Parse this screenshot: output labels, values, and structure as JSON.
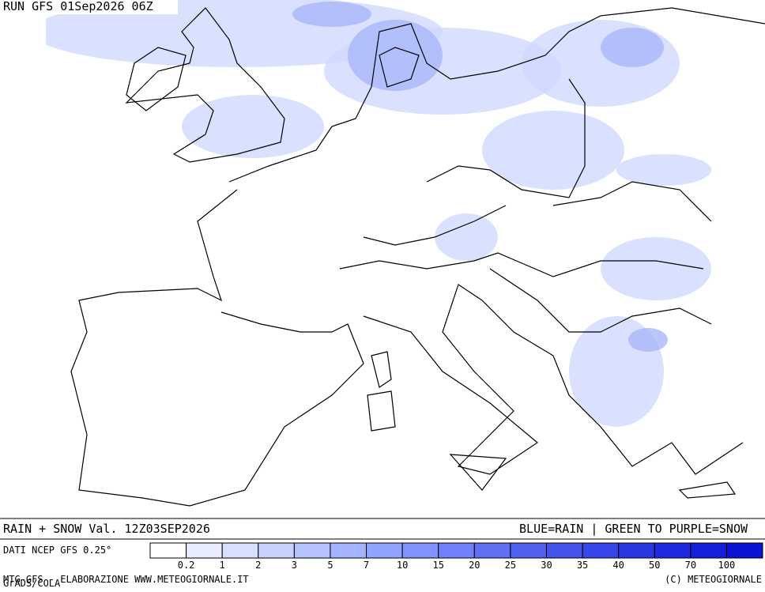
{
  "header": {
    "run": "RUN GFS 01Sep2026 06Z"
  },
  "footer": {
    "title": "RAIN + SNOW Val. 12Z03SEP2026",
    "key": "BLUE=RAIN | GREEN TO PURPLE=SNOW",
    "source": "DATI NCEP GFS 0.25°",
    "credit_left": "MTG-GFS - ELABORAZIONE WWW.METEOGIORNALE.IT",
    "credit_right": "(C) METEOGIORNALE",
    "grads": "GrADS/COLA"
  },
  "colorbar": {
    "labels": [
      0.2,
      1,
      2,
      3,
      5,
      7,
      10,
      15,
      20,
      25,
      30,
      35,
      40,
      50,
      70,
      100
    ],
    "colors": [
      "#ffffff",
      "#e8ecff",
      "#d8e0ff",
      "#c8d2ff",
      "#b6c2ff",
      "#a4b2ff",
      "#92a2ff",
      "#8092ff",
      "#7080fa",
      "#6070f5",
      "#5262f0",
      "#4454ec",
      "#3646e8",
      "#2a38e4",
      "#1e2ae0",
      "#1420da",
      "#0a14d4"
    ]
  }
}
